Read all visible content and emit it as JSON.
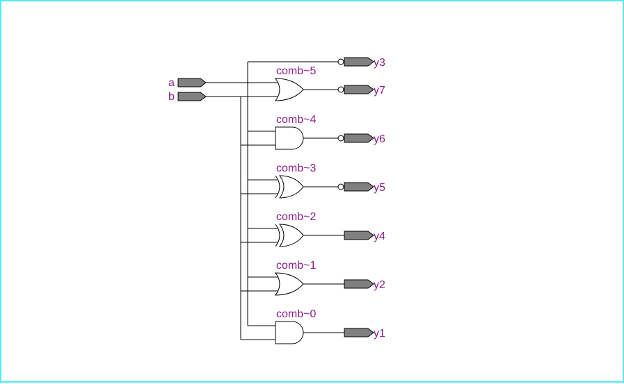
{
  "diagram": {
    "inputs": [
      {
        "id": "a",
        "label": "a"
      },
      {
        "id": "b",
        "label": "b"
      }
    ],
    "gates": [
      {
        "id": "comb5",
        "name": "comb~5",
        "type": "OR",
        "output": "y7",
        "output_inverted": true
      },
      {
        "id": "comb4",
        "name": "comb~4",
        "type": "AND",
        "output": "y6",
        "output_inverted": true
      },
      {
        "id": "comb3",
        "name": "comb~3",
        "type": "XOR",
        "output": "y5",
        "output_inverted": true
      },
      {
        "id": "comb2",
        "name": "comb~2",
        "type": "XOR",
        "output": "y4",
        "output_inverted": false
      },
      {
        "id": "comb1",
        "name": "comb~1",
        "type": "OR",
        "output": "y2",
        "output_inverted": false
      },
      {
        "id": "comb0",
        "name": "comb~0",
        "type": "AND",
        "output": "y1",
        "output_inverted": false
      }
    ],
    "outputs": [
      {
        "id": "y3",
        "label": "y3",
        "inverted": true
      },
      {
        "id": "y7",
        "label": "y7",
        "inverted": true
      },
      {
        "id": "y6",
        "label": "y6",
        "inverted": true
      },
      {
        "id": "y5",
        "label": "y5",
        "inverted": true
      },
      {
        "id": "y4",
        "label": "y4",
        "inverted": false
      },
      {
        "id": "y2",
        "label": "y2",
        "inverted": false
      },
      {
        "id": "y1",
        "label": "y1",
        "inverted": false
      }
    ],
    "colors": {
      "label": "#8b1c8b",
      "pin_fill": "#808080",
      "frame": "#55e8f2"
    }
  }
}
